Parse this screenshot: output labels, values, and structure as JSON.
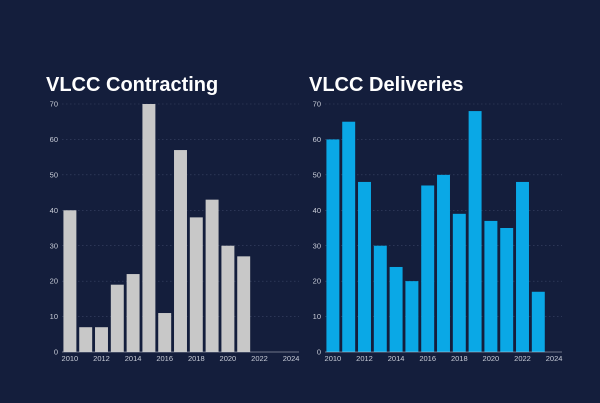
{
  "chart_data": [
    {
      "type": "bar",
      "title": "VLCC Contracting",
      "color": "#c8c8c8",
      "x": [
        2010,
        2011,
        2012,
        2013,
        2014,
        2015,
        2016,
        2017,
        2018,
        2019,
        2020,
        2021
      ],
      "values": [
        40,
        7,
        7,
        19,
        22,
        70,
        11,
        57,
        38,
        43,
        30,
        27
      ],
      "ylim": [
        0,
        70
      ],
      "yticks": [
        0,
        10,
        20,
        30,
        40,
        50,
        60,
        70
      ],
      "xlim": [
        2009.5,
        2024.5
      ],
      "xticks": [
        2010,
        2012,
        2014,
        2016,
        2018,
        2020,
        2022,
        2024
      ],
      "grid": true
    },
    {
      "type": "bar",
      "title": "VLCC Deliveries",
      "color": "#0aa8e6",
      "x": [
        2010,
        2011,
        2012,
        2013,
        2014,
        2015,
        2016,
        2017,
        2018,
        2019,
        2020,
        2021,
        2022,
        2023
      ],
      "values": [
        60,
        65,
        48,
        30,
        24,
        20,
        47,
        50,
        39,
        68,
        37,
        35,
        48,
        17
      ],
      "ylim": [
        0,
        70
      ],
      "yticks": [
        0,
        10,
        20,
        30,
        40,
        50,
        60,
        70
      ],
      "xlim": [
        2009.5,
        2024.5
      ],
      "xticks": [
        2010,
        2012,
        2014,
        2016,
        2018,
        2020,
        2022,
        2024
      ],
      "grid": true
    }
  ]
}
